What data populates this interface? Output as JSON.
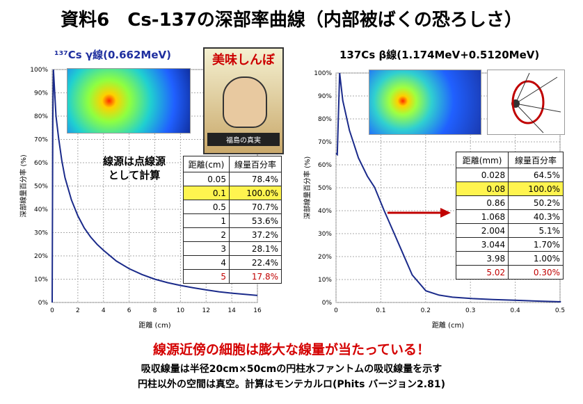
{
  "page": {
    "title": "資料6　Cs-137の深部率曲線（内部被ばくの恐ろしさ）",
    "left_subtitle": "¹³⁷Cs γ線(0.662MeV)",
    "right_subtitle": "137Cs β線(1.174MeV+0.5120MeV)",
    "note_line1": "線源は点線源",
    "note_line2": "として計算",
    "comic_title": "美味しんぼ",
    "comic_sub": "福島の真実",
    "bottom_heading": "線源近傍の細胞は膨大な線量が当たっている！",
    "bottom_line1": "吸収線量は半径20cm×50cmの円柱水ファントムの吸収線量を示す",
    "bottom_line2": "円柱以外の空間は真空。計算はモンテカルロ(Phits バージョン2.81)"
  },
  "left_table": {
    "headers": [
      "距離(cm)",
      "線量百分率"
    ],
    "rows": [
      {
        "d": "0.05",
        "v": "78.4%"
      },
      {
        "d": "0.1",
        "v": "100.0%"
      },
      {
        "d": "0.5",
        "v": "70.7%"
      },
      {
        "d": "1",
        "v": "53.6%"
      },
      {
        "d": "2",
        "v": "37.2%"
      },
      {
        "d": "3",
        "v": "28.1%"
      },
      {
        "d": "4",
        "v": "22.4%"
      },
      {
        "d": "5",
        "v": "17.8%"
      }
    ]
  },
  "right_table": {
    "headers": [
      "距離(mm)",
      "線量百分率"
    ],
    "rows": [
      {
        "d": "0.028",
        "v": "64.5%"
      },
      {
        "d": "0.08",
        "v": "100.0%"
      },
      {
        "d": "0.86",
        "v": "50.2%"
      },
      {
        "d": "1.068",
        "v": "40.3%"
      },
      {
        "d": "2.004",
        "v": "5.1%"
      },
      {
        "d": "3.044",
        "v": "1.70%"
      },
      {
        "d": "3.98",
        "v": "1.00%"
      },
      {
        "d": "5.02",
        "v": "0.30%"
      }
    ]
  },
  "chart_data": [
    {
      "type": "line",
      "title": "¹³⁷Cs γ線(0.662MeV)",
      "xlabel": "距離 (cm)",
      "ylabel": "深部線量百分率 (%)",
      "xlim": [
        0,
        16
      ],
      "ylim": [
        0,
        100
      ],
      "xticks": [
        "0",
        "2",
        "4",
        "6",
        "8",
        "10",
        "12",
        "14",
        "16"
      ],
      "yticks": [
        "0%",
        "10%",
        "20%",
        "30%",
        "40%",
        "50%",
        "60%",
        "70%",
        "80%",
        "90%",
        "100%"
      ],
      "grid": true,
      "series": [
        {
          "color": "#1a2a8a",
          "x": [
            0.0,
            0.05,
            0.1,
            0.3,
            0.5,
            0.75,
            1,
            1.5,
            2,
            2.5,
            3,
            3.5,
            4,
            5,
            6,
            7,
            8,
            9,
            10,
            11,
            12,
            13,
            14,
            15,
            16
          ],
          "y": [
            0,
            78.4,
            100,
            80,
            70.7,
            61,
            53.6,
            44,
            37.2,
            32,
            28.1,
            25,
            22.4,
            17.8,
            14.5,
            12,
            10,
            8.5,
            7.3,
            6.3,
            5.4,
            4.6,
            4.0,
            3.5,
            3.0
          ]
        }
      ]
    },
    {
      "type": "line",
      "title": "137Cs β線(1.174MeV+0.5120MeV)",
      "xlabel": "距離 (cm)",
      "ylabel": "深部線量百分率 (%)",
      "xlim": [
        0,
        0.5
      ],
      "ylim": [
        0,
        100
      ],
      "xticks": [
        "0",
        "0.1",
        "0.2",
        "0.3",
        "0.4",
        "0.5"
      ],
      "yticks": [
        "0%",
        "10%",
        "20%",
        "30%",
        "40%",
        "50%",
        "60%",
        "70%",
        "80%",
        "90%",
        "100%"
      ],
      "grid": true,
      "series": [
        {
          "color": "#1a2a8a",
          "x": [
            0.0,
            0.0028,
            0.008,
            0.015,
            0.03,
            0.05,
            0.07,
            0.086,
            0.1068,
            0.13,
            0.15,
            0.17,
            0.2004,
            0.23,
            0.26,
            0.3044,
            0.35,
            0.398,
            0.45,
            0.502
          ],
          "y": [
            65,
            64.5,
            100,
            88,
            75,
            63,
            55,
            50.2,
            40.3,
            30,
            21,
            12,
            5.1,
            3.2,
            2.3,
            1.7,
            1.3,
            1.0,
            0.6,
            0.3
          ]
        }
      ]
    }
  ]
}
